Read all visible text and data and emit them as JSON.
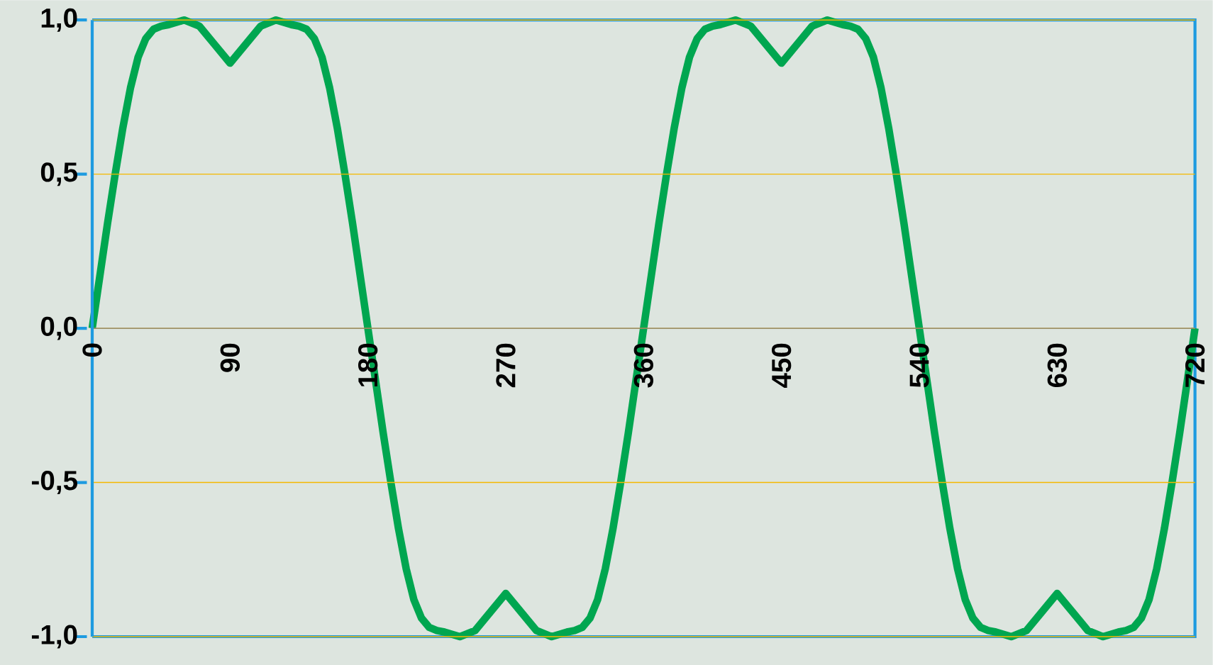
{
  "chart_data": {
    "type": "line",
    "x": [
      0,
      5,
      10,
      15,
      20,
      25,
      30,
      35,
      40,
      45,
      50,
      60,
      70,
      80,
      90,
      100,
      110,
      120,
      130,
      135,
      140,
      145,
      150,
      155,
      160,
      165,
      170,
      175,
      180,
      185,
      190,
      195,
      200,
      205,
      210,
      215,
      220,
      225,
      230,
      240,
      250,
      260,
      270,
      280,
      290,
      300,
      310,
      315,
      320,
      325,
      330,
      335,
      340,
      345,
      350,
      355,
      360,
      365,
      370,
      375,
      380,
      385,
      390,
      395,
      400,
      405,
      410,
      420,
      430,
      440,
      450,
      460,
      470,
      480,
      490,
      495,
      500,
      505,
      510,
      515,
      520,
      525,
      530,
      535,
      540,
      545,
      550,
      555,
      560,
      565,
      570,
      575,
      580,
      585,
      590,
      600,
      610,
      620,
      630,
      640,
      650,
      660,
      670,
      675,
      680,
      685,
      690,
      695,
      700,
      705,
      710,
      715,
      720
    ],
    "series": [
      {
        "color": "#00a650",
        "values": [
          0,
          0.17,
          0.34,
          0.5,
          0.65,
          0.78,
          0.88,
          0.94,
          0.97,
          0.98,
          0.985,
          1.0,
          0.98,
          0.92,
          0.86,
          0.92,
          0.98,
          1.0,
          0.985,
          0.98,
          0.97,
          0.94,
          0.88,
          0.78,
          0.65,
          0.5,
          0.34,
          0.17,
          0,
          -0.17,
          -0.34,
          -0.5,
          -0.65,
          -0.78,
          -0.88,
          -0.94,
          -0.97,
          -0.98,
          -0.985,
          -1.0,
          -0.98,
          -0.92,
          -0.86,
          -0.92,
          -0.98,
          -1.0,
          -0.985,
          -0.98,
          -0.97,
          -0.94,
          -0.88,
          -0.78,
          -0.65,
          -0.5,
          -0.34,
          -0.17,
          0,
          0.17,
          0.34,
          0.5,
          0.65,
          0.78,
          0.88,
          0.94,
          0.97,
          0.98,
          0.985,
          1.0,
          0.98,
          0.92,
          0.86,
          0.92,
          0.98,
          1.0,
          0.985,
          0.98,
          0.97,
          0.94,
          0.88,
          0.78,
          0.65,
          0.5,
          0.34,
          0.17,
          0,
          -0.17,
          -0.34,
          -0.5,
          -0.65,
          -0.78,
          -0.88,
          -0.94,
          -0.97,
          -0.98,
          -0.985,
          -1.0,
          -0.98,
          -0.92,
          -0.86,
          -0.92,
          -0.98,
          -1.0,
          -0.985,
          -0.98,
          -0.97,
          -0.94,
          -0.88,
          -0.78,
          -0.65,
          -0.5,
          -0.34,
          -0.17,
          0
        ]
      }
    ],
    "xlim": [
      0,
      720
    ],
    "ylim": [
      -1,
      1
    ],
    "xticks": [
      0,
      90,
      180,
      270,
      360,
      450,
      540,
      630,
      720
    ],
    "yticks": [
      {
        "value": -1,
        "label": "-1,0"
      },
      {
        "value": -0.5,
        "label": "-0,5"
      },
      {
        "value": 0,
        "label": "0,0"
      },
      {
        "value": 0.5,
        "label": "0,5"
      },
      {
        "value": 1,
        "label": "1,0"
      }
    ],
    "grid": "y",
    "marker": "none",
    "line_style": "solid"
  }
}
